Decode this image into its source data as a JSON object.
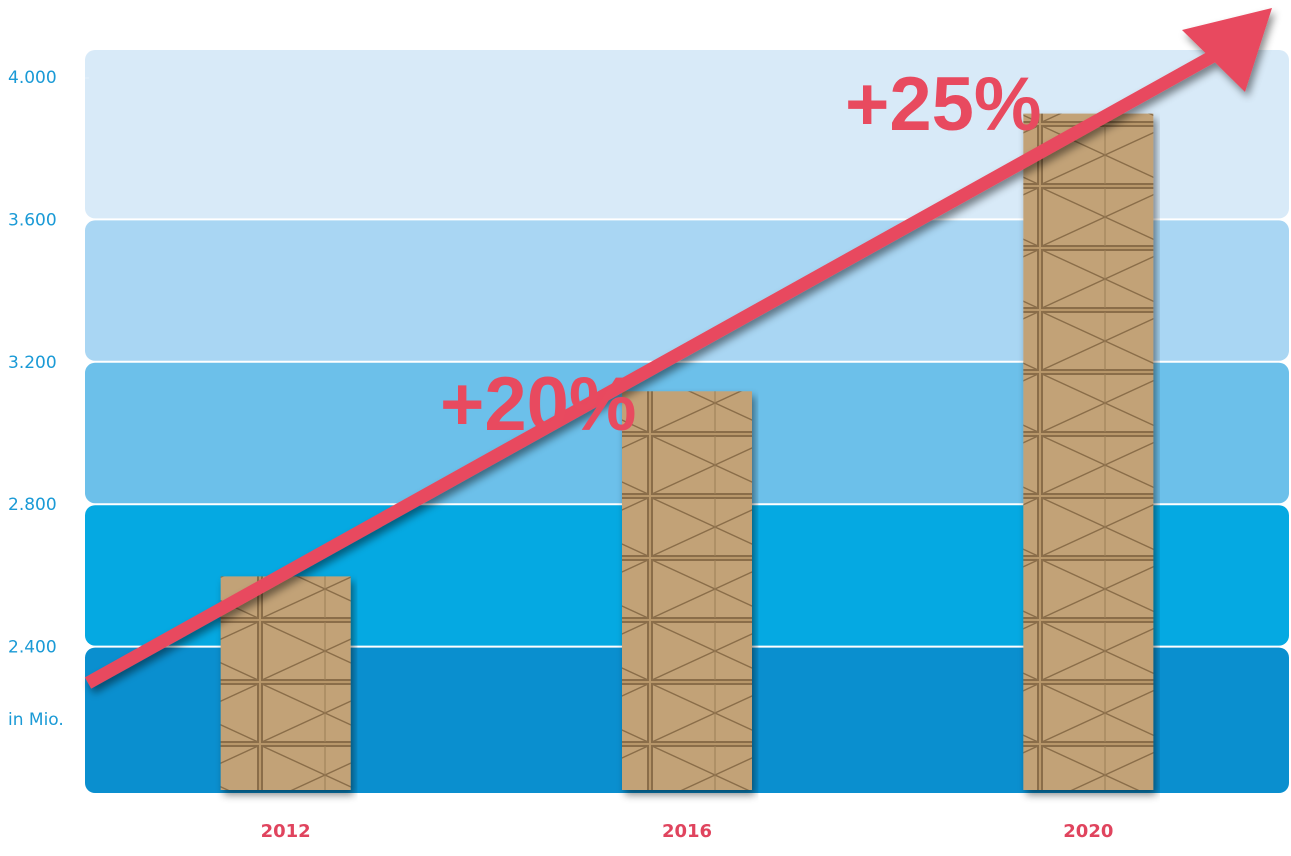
{
  "chart_data": {
    "type": "bar",
    "y_label": "in Mio.",
    "categories": [
      "2012",
      "2016",
      "2020"
    ],
    "values": [
      2600,
      3120,
      3900
    ],
    "color": "#b8976b",
    "ylim": [
      2000,
      4000
    ],
    "yticks": [
      {
        "value": 2400,
        "label": "2.400"
      },
      {
        "value": 2800,
        "label": "2.800"
      },
      {
        "value": 3200,
        "label": "3.200"
      },
      {
        "value": 3600,
        "label": "3.600"
      },
      {
        "value": 4000,
        "label": "4.000"
      }
    ],
    "band_colors": [
      "#0a8fcf",
      "#05a9e2",
      "#6cc0ea",
      "#a9d6f3",
      "#d8eaf8"
    ],
    "annotations": [
      "+20%",
      "+25%"
    ]
  }
}
